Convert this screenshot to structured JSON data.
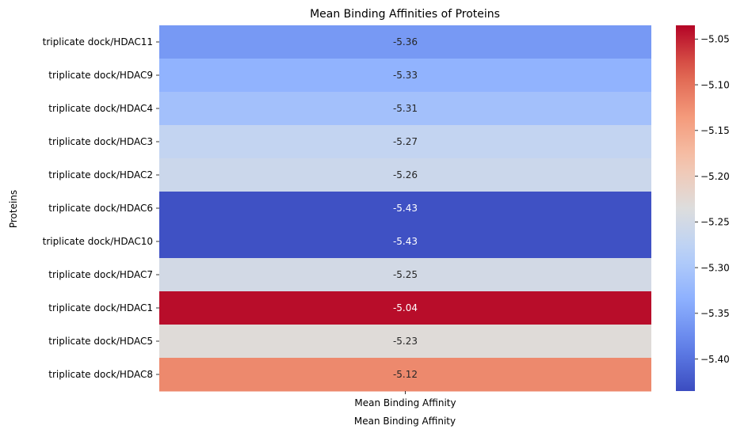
{
  "chart_data": {
    "type": "heatmap",
    "title": "Mean Binding Affinities of Proteins",
    "xlabel": "Mean Binding Affinity",
    "ylabel": "Proteins",
    "columns": [
      "Mean Binding Affinity"
    ],
    "rows": [
      "triplicate dock/HDAC11",
      "triplicate dock/HDAC9",
      "triplicate dock/HDAC4",
      "triplicate dock/HDAC3",
      "triplicate dock/HDAC2",
      "triplicate dock/HDAC6",
      "triplicate dock/HDAC10",
      "triplicate dock/HDAC7",
      "triplicate dock/HDAC1",
      "triplicate dock/HDAC5",
      "triplicate dock/HDAC8"
    ],
    "values": [
      -5.36,
      -5.33,
      -5.31,
      -5.27,
      -5.26,
      -5.43,
      -5.43,
      -5.25,
      -5.04,
      -5.23,
      -5.12
    ],
    "value_labels": [
      "-5.36",
      "-5.33",
      "-5.31",
      "-5.27",
      "-5.26",
      "-5.43",
      "-5.43",
      "-5.25",
      "-5.04",
      "-5.23",
      "-5.12"
    ],
    "colormap": "coolwarm",
    "vmin": -5.435,
    "vmax": -5.035,
    "colorbar_ticks": [
      -5.05,
      -5.1,
      -5.15,
      -5.2,
      -5.25,
      -5.3,
      -5.35,
      -5.4
    ],
    "colorbar_tick_labels": [
      "−5.05",
      "−5.10",
      "−5.15",
      "−5.20",
      "−5.25",
      "−5.30",
      "−5.35",
      "−5.40"
    ]
  }
}
